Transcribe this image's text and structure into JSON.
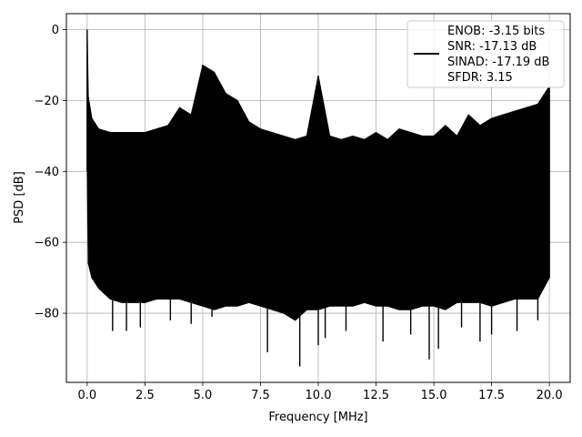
{
  "chart_data": {
    "type": "line",
    "title": "",
    "xlabel": "Frequency [MHz]",
    "ylabel": "PSD [dB]",
    "xlim": [
      -0.9,
      20.9
    ],
    "ylim": [
      -99.5,
      4.5
    ],
    "xticks": [
      0.0,
      2.5,
      5.0,
      7.5,
      10.0,
      12.5,
      15.0,
      17.5,
      20.0
    ],
    "xtick_labels": [
      "0.0",
      "2.5",
      "5.0",
      "7.5",
      "10.0",
      "12.5",
      "15.0",
      "17.5",
      "20.0"
    ],
    "yticks": [
      0,
      -20,
      -40,
      -60,
      -80
    ],
    "ytick_labels": [
      "0",
      "−20",
      "−40",
      "−60",
      "−80"
    ],
    "grid": true,
    "legend_position": "top-right",
    "series": [
      {
        "color": "#000000",
        "description": "noise-dominated PSD from 0 to 20 MHz, dense band roughly -30 to -70 dB",
        "x": [
          0.0,
          0.05,
          0.2,
          0.5,
          1.0,
          1.5,
          2.0,
          2.5,
          3.0,
          3.5,
          4.0,
          4.5,
          5.0,
          5.5,
          6.0,
          6.5,
          7.0,
          7.5,
          8.0,
          8.5,
          9.0,
          9.5,
          10.0,
          10.5,
          11.0,
          11.5,
          12.0,
          12.5,
          13.0,
          13.5,
          14.0,
          14.5,
          15.0,
          15.5,
          16.0,
          16.5,
          17.0,
          17.5,
          18.0,
          18.5,
          19.0,
          19.5,
          20.0
        ],
        "upper": [
          0,
          -19,
          -25,
          -28,
          -29,
          -29,
          -29,
          -29,
          -28,
          -27,
          -22,
          -24,
          -10,
          -12,
          -18,
          -20,
          -26,
          -28,
          -29,
          -30,
          -31,
          -30,
          -13,
          -30,
          -31,
          -30,
          -31,
          -29,
          -31,
          -28,
          -29,
          -30,
          -30,
          -27,
          -30,
          -24,
          -27,
          -25,
          -24,
          -23,
          -22,
          -21,
          -16
        ],
        "lower": [
          -40,
          -66,
          -70,
          -73,
          -76,
          -77,
          -77,
          -77,
          -76,
          -76,
          -76,
          -77,
          -78,
          -79,
          -78,
          -78,
          -77,
          -78,
          -79,
          -80,
          -82,
          -79,
          -79,
          -78,
          -78,
          -78,
          -77,
          -78,
          -78,
          -79,
          -79,
          -78,
          -78,
          -79,
          -77,
          -77,
          -77,
          -78,
          -77,
          -76,
          -76,
          -76,
          -70
        ],
        "spike_lows": [
          [
            1.1,
            -85
          ],
          [
            1.7,
            -85
          ],
          [
            2.3,
            -84
          ],
          [
            3.6,
            -82
          ],
          [
            4.5,
            -83
          ],
          [
            5.4,
            -81
          ],
          [
            7.8,
            -91
          ],
          [
            9.2,
            -95
          ],
          [
            10.0,
            -89
          ],
          [
            10.3,
            -87
          ],
          [
            11.2,
            -85
          ],
          [
            12.8,
            -88
          ],
          [
            14.0,
            -86
          ],
          [
            14.8,
            -93
          ],
          [
            15.2,
            -90
          ],
          [
            16.2,
            -84
          ],
          [
            17.0,
            -88
          ],
          [
            17.5,
            -86
          ],
          [
            18.6,
            -85
          ],
          [
            19.5,
            -82
          ]
        ]
      }
    ],
    "legend_lines": [
      "ENOB: -3.15 bits",
      "SNR: -17.13 dB",
      "SINAD: -17.19 dB",
      "SFDR: 3.15"
    ]
  }
}
